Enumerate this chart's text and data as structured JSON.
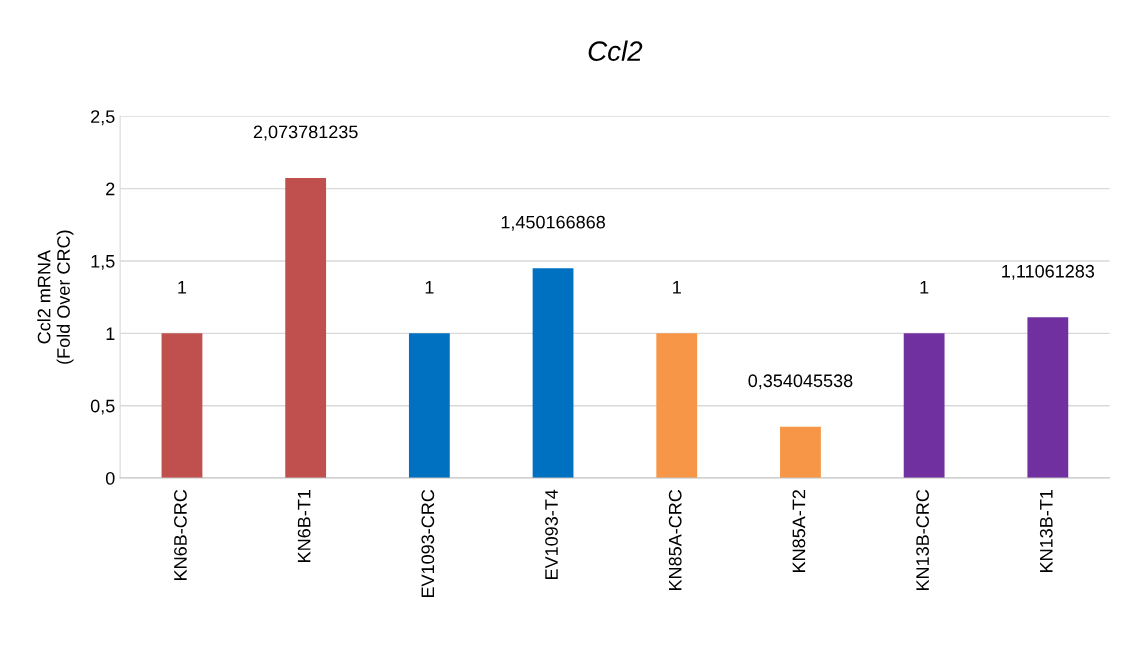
{
  "chart_data": {
    "type": "bar",
    "title": "Ccl2",
    "ylabel": "Ccl2 mRNA\n(Fold Over CRC)",
    "categories": [
      "KN6B-CRC",
      "KN6B-T1",
      "EV1093-CRC",
      "EV1093-T4",
      "KN85A-CRC",
      "KN85A-T2",
      "KN13B-CRC",
      "KN13B-T1"
    ],
    "values": [
      1,
      2.073781235,
      1,
      1.450166868,
      1,
      0.354045538,
      1,
      1.11061283
    ],
    "colors": [
      "#c0504d",
      "#c0504d",
      "#0070c0",
      "#0070c0",
      "#f79646",
      "#f79646",
      "#7030a0",
      "#7030a0"
    ],
    "value_labels": [
      "1",
      "2,073781235",
      "1",
      "1,450166868",
      "1",
      "0,354045538",
      "1",
      "1,11061283"
    ],
    "ylim": [
      0,
      2.5
    ],
    "yticks": [
      0,
      {
        "value": 0.5,
        "label": "0,5"
      },
      1,
      {
        "value": 1.5,
        "label": "1,5"
      },
      2,
      {
        "value": 2.5,
        "label": "2,5"
      }
    ],
    "grid": "y"
  }
}
